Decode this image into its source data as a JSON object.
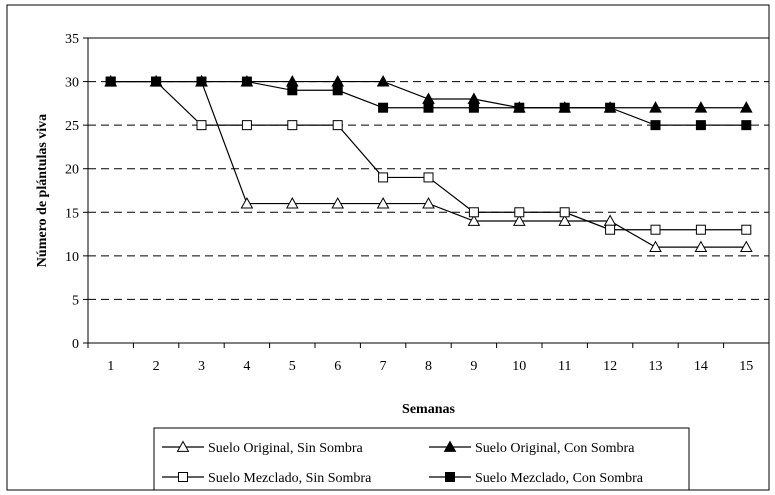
{
  "chart_data": {
    "type": "line",
    "title": "",
    "xlabel": "Semanas",
    "ylabel": "Número de plántulas viva",
    "x": [
      1,
      2,
      3,
      4,
      5,
      6,
      7,
      8,
      9,
      10,
      11,
      12,
      13,
      14,
      15
    ],
    "xlim": [
      0.5,
      15.5
    ],
    "ylim": [
      0,
      35
    ],
    "yticks": [
      0,
      5,
      10,
      15,
      20,
      25,
      30,
      35
    ],
    "grid": "horizontal-dashed",
    "legend_position": "bottom",
    "series": [
      {
        "name": "Suelo Original, Sin Sombra",
        "marker": "open-triangle",
        "color": "#000000",
        "values": [
          30,
          30,
          30,
          16,
          16,
          16,
          16,
          16,
          14,
          14,
          14,
          14,
          11,
          11,
          11
        ]
      },
      {
        "name": "Suelo Original, Con Sombra",
        "marker": "filled-triangle",
        "color": "#000000",
        "values": [
          30,
          30,
          30,
          30,
          30,
          30,
          30,
          28,
          28,
          27,
          27,
          27,
          27,
          27,
          27
        ]
      },
      {
        "name": "Suelo Mezclado, Sin Sombra",
        "marker": "open-square",
        "color": "#000000",
        "values": [
          30,
          30,
          25,
          25,
          25,
          25,
          19,
          19,
          15,
          15,
          15,
          13,
          13,
          13,
          13
        ]
      },
      {
        "name": "Suelo Mezclado, Con Sombra",
        "marker": "filled-square",
        "color": "#000000",
        "values": [
          30,
          30,
          30,
          30,
          29,
          29,
          27,
          27,
          27,
          27,
          27,
          27,
          25,
          25,
          25
        ]
      }
    ]
  }
}
